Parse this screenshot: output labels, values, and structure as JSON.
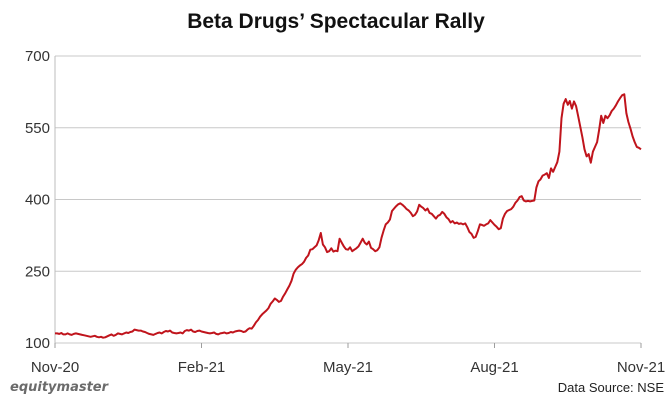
{
  "chart_data": {
    "type": "line",
    "title": "Beta Drugs’ Spectacular Rally",
    "xlabel": "",
    "ylabel": "",
    "ylim": [
      100,
      700
    ],
    "y_ticks": [
      "100",
      "250",
      "400",
      "550",
      "700"
    ],
    "x_ticks": [
      "Nov-20",
      "Feb-21",
      "May-21",
      "Aug-21",
      "Nov-21"
    ],
    "grid": "horizontal",
    "line_color": "#c0141c",
    "series": [
      {
        "values": [
          120,
          120,
          119,
          121,
          118,
          118,
          120,
          118,
          117,
          119,
          120,
          119,
          118,
          117,
          116,
          115,
          114,
          113,
          114,
          115,
          113,
          112,
          113,
          111,
          112,
          114,
          116,
          118,
          115,
          117,
          120,
          119,
          118,
          120,
          122,
          121,
          123,
          124,
          128,
          127,
          126,
          126,
          124,
          123,
          121,
          119,
          118,
          117,
          119,
          121,
          122,
          120,
          123,
          125,
          124,
          126,
          122,
          121,
          120,
          121,
          122,
          120,
          125,
          127,
          126,
          128,
          124,
          123,
          125,
          126,
          124,
          123,
          122,
          121,
          120,
          121,
          122,
          119,
          118,
          120,
          121,
          122,
          120,
          121,
          123,
          122,
          124,
          125,
          126,
          125,
          123,
          124,
          128,
          131,
          130,
          136,
          143,
          148,
          155,
          160,
          164,
          168,
          173,
          182,
          187,
          193,
          190,
          186,
          188,
          197,
          204,
          212,
          220,
          230,
          245,
          253,
          258,
          262,
          265,
          270,
          278,
          283,
          295,
          296,
          300,
          304,
          315,
          330,
          306,
          300,
          290,
          292,
          298,
          291,
          293,
          292,
          318,
          310,
          302,
          296,
          295,
          300,
          292,
          295,
          298,
          302,
          310,
          318,
          310,
          306,
          312,
          299,
          296,
          292,
          294,
          300,
          320,
          335,
          348,
          352,
          358,
          376,
          381,
          386,
          390,
          392,
          389,
          385,
          380,
          377,
          372,
          365,
          368,
          375,
          389,
          385,
          382,
          377,
          381,
          372,
          370,
          365,
          360,
          366,
          368,
          374,
          370,
          363,
          359,
          352,
          355,
          350,
          352,
          349,
          350,
          348,
          350,
          342,
          332,
          328,
          320,
          322,
          334,
          348,
          347,
          345,
          348,
          350,
          357,
          352,
          347,
          343,
          338,
          340,
          360,
          370,
          376,
          378,
          380,
          385,
          393,
          398,
          405,
          407,
          398,
          396,
          397,
          396,
          397,
          398,
          425,
          438,
          442,
          450,
          452,
          455,
          445,
          465,
          458,
          468,
          478,
          500,
          570,
          600,
          610,
          598,
          606,
          590,
          605,
          595,
          574,
          552,
          530,
          505,
          490,
          495,
          477,
          500,
          510,
          520,
          545,
          575,
          560,
          575,
          570,
          576,
          585,
          590,
          597,
          605,
          612,
          618,
          620,
          580,
          562,
          548,
          532,
          520,
          510,
          508,
          505
        ]
      }
    ]
  },
  "footer": {
    "brand": "equitymaster",
    "source": "Data Source: NSE"
  }
}
